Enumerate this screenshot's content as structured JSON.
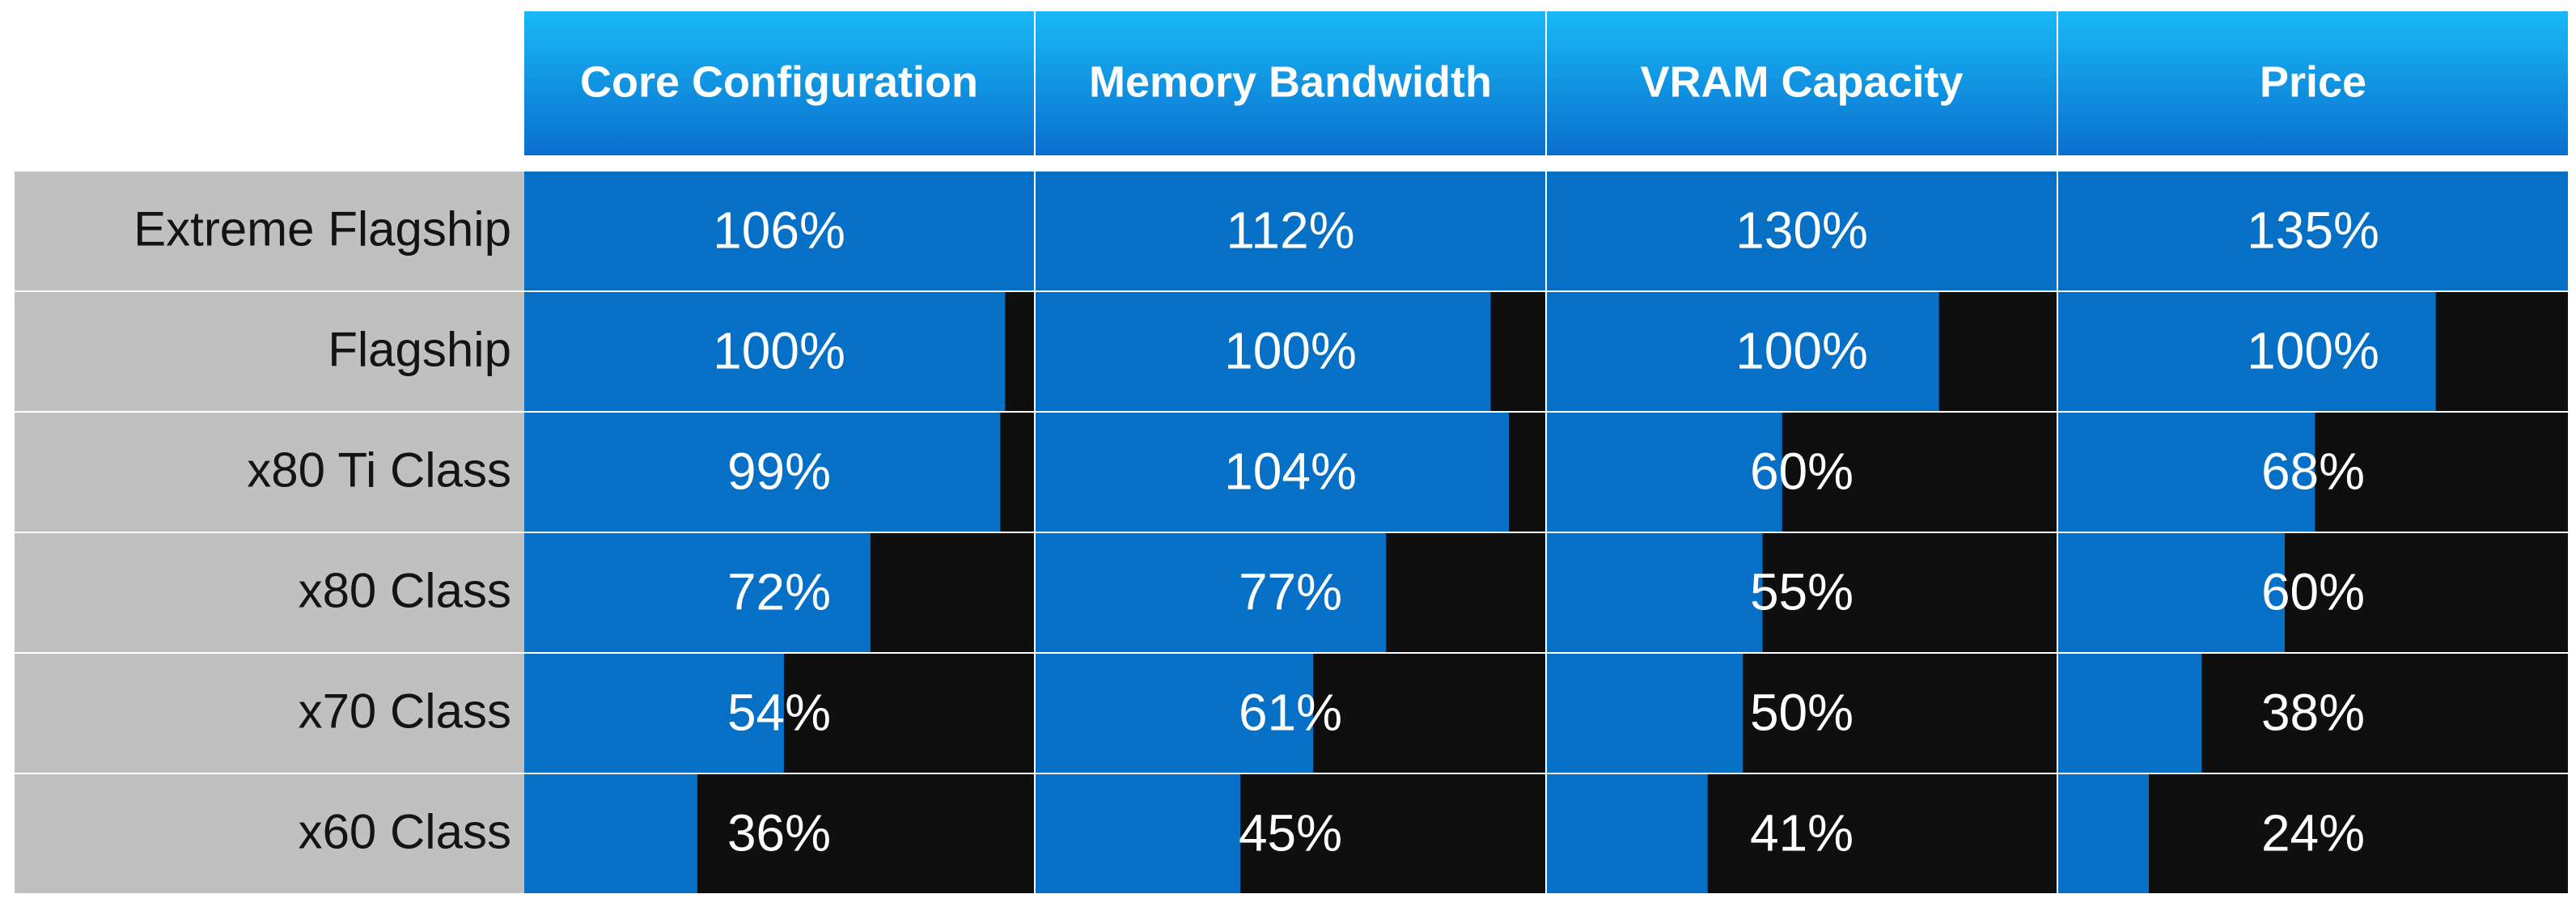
{
  "chart_data": {
    "type": "table",
    "columns": [
      "Core Configuration",
      "Memory Bandwidth",
      "VRAM Capacity",
      "Price"
    ],
    "rows": [
      "Extreme Flagship",
      "Flagship",
      "x80 Ti Class",
      "x80 Class",
      "x70 Class",
      "x60 Class"
    ],
    "values": [
      [
        106,
        112,
        130,
        135
      ],
      [
        100,
        100,
        100,
        100
      ],
      [
        99,
        104,
        60,
        68
      ],
      [
        72,
        77,
        55,
        60
      ],
      [
        54,
        61,
        50,
        38
      ],
      [
        36,
        45,
        41,
        24
      ]
    ],
    "value_labels": [
      [
        "106%",
        "112%",
        "130%",
        "135%"
      ],
      [
        "100%",
        "100%",
        "100%",
        "100%"
      ],
      [
        "99%",
        "104%",
        "60%",
        "68%"
      ],
      [
        "72%",
        "77%",
        "55%",
        "60%"
      ],
      [
        "54%",
        "61%",
        "50%",
        "38%"
      ],
      [
        "36%",
        "45%",
        "41%",
        "24%"
      ]
    ],
    "column_max": [
      106,
      112,
      130,
      135
    ]
  },
  "colors": {
    "header_gradient_top": "#19b9f5",
    "header_gradient_bottom": "#0a6fce",
    "bar_fill": "#0670c6",
    "cell_background": "#0f0f0f",
    "row_label_background": "#c0c0c0",
    "row_label_text": "#141414",
    "value_text": "#ffffff"
  }
}
